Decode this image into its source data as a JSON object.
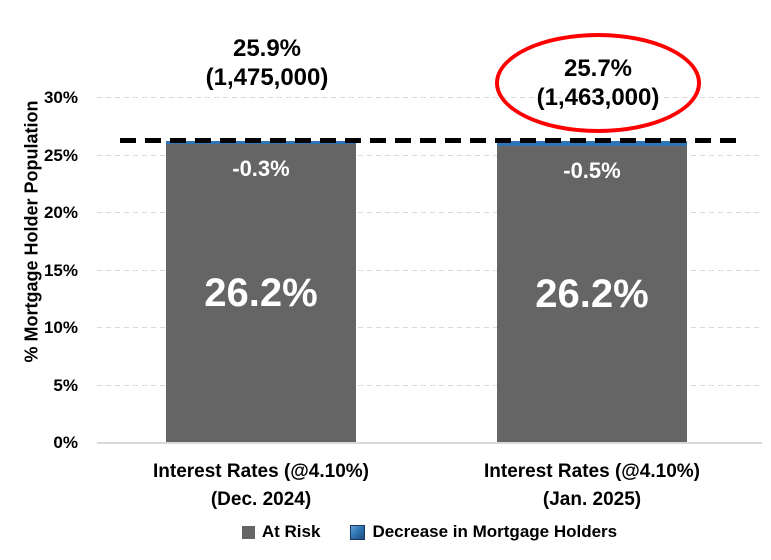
{
  "chart_data": {
    "type": "bar",
    "stacked": true,
    "ylabel": "% Mortgage Holder Population",
    "ylim": [
      0,
      30
    ],
    "yticks": [
      0,
      5,
      10,
      15,
      20,
      25,
      30
    ],
    "ytick_labels": [
      "0%",
      "5%",
      "10%",
      "15%",
      "20%",
      "25%",
      "30%"
    ],
    "grid": "horizontal-dashed",
    "legend_position": "bottom",
    "categories": [
      {
        "line1": "Interest Rates (@4.10%)",
        "line2": "(Dec. 2024)"
      },
      {
        "line1": "Interest Rates (@4.10%)",
        "line2": "(Jan. 2025)"
      }
    ],
    "series": [
      {
        "name": "At Risk",
        "color": "#656565",
        "values": [
          25.9,
          25.7
        ]
      },
      {
        "name": "Decrease in Mortgage Holders",
        "color": "#2e75b6",
        "values": [
          0.3,
          0.5
        ]
      }
    ],
    "segment_labels": {
      "decrease": [
        "-0.3%",
        "-0.5%"
      ],
      "total": [
        "26.2%",
        "26.2%"
      ]
    },
    "annotations": [
      {
        "line1": "25.9%",
        "line2": "(1,475,000)",
        "circled": false
      },
      {
        "line1": "25.7%",
        "line2": "(1,463,000)",
        "circled": true
      }
    ],
    "reference_line": {
      "value": 26.2,
      "style": "dashed",
      "color": "#000000"
    },
    "colors": {
      "annotation_circle": "#ff0000",
      "gridline": "#d9d9d9",
      "axis_line": "#d9d9d9",
      "text": "#000000",
      "bar_label_text": "#ffffff"
    }
  }
}
